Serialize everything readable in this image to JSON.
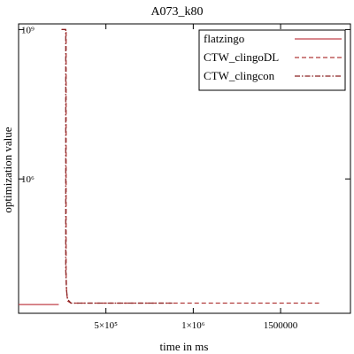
{
  "chart_data": {
    "type": "line",
    "title": "A073_k80",
    "xlabel": "time in ms",
    "ylabel": "optimization value",
    "xscale": "linear",
    "yscale": "log",
    "xlim": [
      0,
      1900000
    ],
    "ylim": [
      2000,
      1300000000
    ],
    "grid": false,
    "legend_position": "top-right",
    "x_ticks": [
      {
        "value": 500000,
        "label": "5×10⁵"
      },
      {
        "value": 1000000,
        "label": "1×10⁶"
      },
      {
        "value": 1500000,
        "label": "1500000"
      }
    ],
    "y_ticks": [
      {
        "value": 1000000000,
        "label": "10⁹"
      },
      {
        "value": 1000000,
        "label": "10⁶"
      }
    ],
    "series": [
      {
        "name": "flatzingo",
        "color": "#c0404a",
        "dash": "solid",
        "points": [
          [
            0,
            3000
          ],
          [
            230000,
            3000
          ]
        ]
      },
      {
        "name": "CTW_clingoDL",
        "color": "#b03a3a",
        "dash": "dashed",
        "points": [
          [
            245000,
            1000000000
          ],
          [
            272000,
            1000000000
          ],
          [
            272000,
            12000
          ],
          [
            275000,
            5000
          ],
          [
            282000,
            3500
          ],
          [
            300000,
            3200
          ],
          [
            1720000,
            3200
          ]
        ]
      },
      {
        "name": "CTW_clingcon",
        "color": "#8a2222",
        "dash": "dashdot",
        "points": [
          [
            248000,
            1000000000
          ],
          [
            270000,
            1000000000
          ],
          [
            270000,
            15000
          ],
          [
            274000,
            6000
          ],
          [
            280000,
            3800
          ],
          [
            300000,
            3200
          ],
          [
            880000,
            3200
          ]
        ]
      }
    ]
  }
}
